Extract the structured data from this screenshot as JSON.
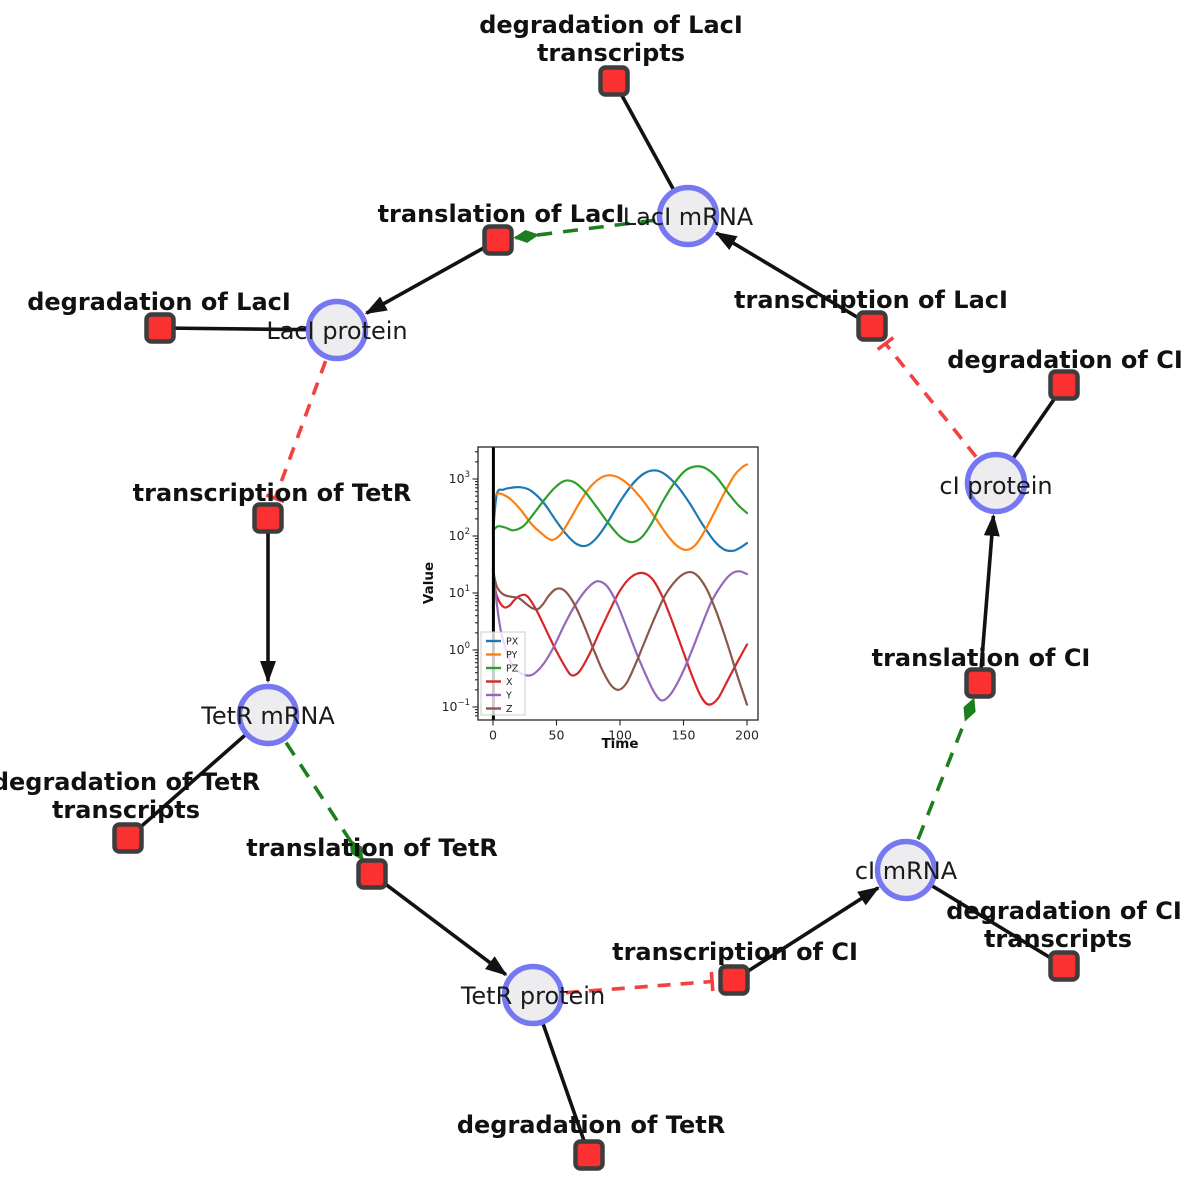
{
  "figure": {
    "description": "Repressilator gene regulatory network with embedded simulation time course"
  },
  "colors": {
    "species_fill": "#ededf0",
    "species_border": "#7678f2",
    "reaction_fill": "#fb3131",
    "reaction_border": "#3d3d3d",
    "production_edge": "#121212",
    "modifier_edge": "#1e7d1e",
    "inhibition_edge": "#f34040"
  },
  "network": {
    "species": [
      {
        "id": "laci-mrna",
        "label": "LacI mRNA"
      },
      {
        "id": "laci-protein",
        "label": "LacI protein"
      },
      {
        "id": "ci-protein",
        "label": "cI protein"
      },
      {
        "id": "tetr-mrna",
        "label": "TetR mRNA"
      },
      {
        "id": "tetr-protein",
        "label": "TetR protein"
      },
      {
        "id": "ci-mrna",
        "label": "cI mRNA"
      }
    ],
    "reactions": [
      {
        "id": "degradation-of-laci-transcripts",
        "label_lines": [
          "degradation of LacI",
          "transcripts"
        ]
      },
      {
        "id": "translation-of-laci",
        "label_lines": [
          "translation of LacI"
        ]
      },
      {
        "id": "degradation-of-laci",
        "label_lines": [
          "degradation of LacI"
        ]
      },
      {
        "id": "transcription-of-laci",
        "label_lines": [
          "transcription of LacI"
        ]
      },
      {
        "id": "degradation-of-ci",
        "label_lines": [
          "degradation of CI"
        ]
      },
      {
        "id": "transcription-of-tetr",
        "label_lines": [
          "transcription of TetR"
        ]
      },
      {
        "id": "degradation-of-tetr-transcripts",
        "label_lines": [
          "degradation of TetR",
          "transcripts"
        ]
      },
      {
        "id": "translation-of-tetr",
        "label_lines": [
          "translation of TetR"
        ]
      },
      {
        "id": "degradation-of-tetr",
        "label_lines": [
          "degradation of TetR"
        ]
      },
      {
        "id": "transcription-of-ci",
        "label_lines": [
          "transcription of CI"
        ]
      },
      {
        "id": "degradation-of-ci-transcripts",
        "label_lines": [
          "degradation of CI",
          "transcripts"
        ]
      },
      {
        "id": "translation-of-ci",
        "label_lines": [
          "translation of CI"
        ]
      }
    ]
  },
  "chart_data": {
    "type": "line",
    "title": "",
    "xlabel": "Time",
    "ylabel": "Value",
    "xlim": [
      -8,
      209
    ],
    "x_ticks": [
      0,
      50,
      100,
      150,
      200
    ],
    "yscale": "log",
    "ylim": [
      0.06,
      3500
    ],
    "y_tick_exponents": [
      3,
      2,
      1,
      0,
      -1
    ],
    "grid": false,
    "legend_position": "lower left",
    "event_line_x": 0,
    "series": [
      {
        "name": "PX",
        "color": "#1f77b4",
        "points": [
          [
            0,
            110
          ],
          [
            3,
            540
          ],
          [
            8,
            650
          ],
          [
            14,
            700
          ],
          [
            22,
            715
          ],
          [
            30,
            620
          ],
          [
            40,
            380
          ],
          [
            50,
            180
          ],
          [
            58,
            105
          ],
          [
            66,
            72
          ],
          [
            74,
            68
          ],
          [
            82,
            95
          ],
          [
            90,
            170
          ],
          [
            100,
            400
          ],
          [
            110,
            820
          ],
          [
            119,
            1250
          ],
          [
            127,
            1420
          ],
          [
            135,
            1230
          ],
          [
            145,
            760
          ],
          [
            155,
            370
          ],
          [
            165,
            160
          ],
          [
            174,
            83
          ],
          [
            182,
            58
          ],
          [
            189,
            55
          ],
          [
            195,
            63
          ],
          [
            200,
            75
          ]
        ]
      },
      {
        "name": "PY",
        "color": "#ff7f0e",
        "points": [
          [
            0,
            480
          ],
          [
            4,
            555
          ],
          [
            9,
            520
          ],
          [
            15,
            420
          ],
          [
            22,
            285
          ],
          [
            30,
            165
          ],
          [
            38,
            112
          ],
          [
            46,
            85
          ],
          [
            53,
            105
          ],
          [
            60,
            185
          ],
          [
            68,
            380
          ],
          [
            76,
            700
          ],
          [
            84,
            1020
          ],
          [
            91,
            1160
          ],
          [
            99,
            1060
          ],
          [
            108,
            750
          ],
          [
            118,
            420
          ],
          [
            128,
            205
          ],
          [
            137,
            105
          ],
          [
            145,
            67
          ],
          [
            152,
            57
          ],
          [
            159,
            68
          ],
          [
            166,
            115
          ],
          [
            174,
            250
          ],
          [
            182,
            560
          ],
          [
            190,
            1150
          ],
          [
            196,
            1600
          ],
          [
            200,
            1800
          ]
        ]
      },
      {
        "name": "PZ",
        "color": "#2ca02c",
        "points": [
          [
            0,
            125
          ],
          [
            4,
            148
          ],
          [
            10,
            140
          ],
          [
            16,
            126
          ],
          [
            24,
            150
          ],
          [
            32,
            245
          ],
          [
            40,
            420
          ],
          [
            48,
            680
          ],
          [
            56,
            920
          ],
          [
            63,
            900
          ],
          [
            71,
            650
          ],
          [
            80,
            360
          ],
          [
            90,
            178
          ],
          [
            100,
            98
          ],
          [
            109,
            78
          ],
          [
            117,
            95
          ],
          [
            125,
            170
          ],
          [
            133,
            380
          ],
          [
            142,
            800
          ],
          [
            151,
            1380
          ],
          [
            159,
            1660
          ],
          [
            167,
            1560
          ],
          [
            176,
            1080
          ],
          [
            186,
            540
          ],
          [
            193,
            350
          ],
          [
            200,
            252
          ]
        ]
      },
      {
        "name": "X",
        "color": "#d62728",
        "points": [
          [
            0,
            26
          ],
          [
            2,
            11
          ],
          [
            5,
            7
          ],
          [
            9,
            5.6
          ],
          [
            13,
            6
          ],
          [
            17,
            7.6
          ],
          [
            21,
            8.9
          ],
          [
            25,
            9.3
          ],
          [
            29,
            7.8
          ],
          [
            35,
            4.6
          ],
          [
            42,
            2.2
          ],
          [
            50,
            0.95
          ],
          [
            57,
            0.5
          ],
          [
            62,
            0.36
          ],
          [
            68,
            0.42
          ],
          [
            76,
            0.85
          ],
          [
            84,
            2.1
          ],
          [
            92,
            5
          ],
          [
            100,
            11
          ],
          [
            108,
            18.5
          ],
          [
            117,
            22.5
          ],
          [
            125,
            18
          ],
          [
            133,
            9
          ],
          [
            141,
            3.2
          ],
          [
            149,
            1.05
          ],
          [
            157,
            0.34
          ],
          [
            164,
            0.15
          ],
          [
            170,
            0.11
          ],
          [
            177,
            0.14
          ],
          [
            185,
            0.3
          ],
          [
            193,
            0.65
          ],
          [
            200,
            1.25
          ]
        ]
      },
      {
        "name": "Y",
        "color": "#9467bd",
        "points": [
          [
            0,
            26
          ],
          [
            3,
            6.5
          ],
          [
            6,
            2.3
          ],
          [
            10,
            1.05
          ],
          [
            15,
            0.55
          ],
          [
            20,
            0.42
          ],
          [
            26,
            0.36
          ],
          [
            32,
            0.38
          ],
          [
            40,
            0.58
          ],
          [
            48,
            1.15
          ],
          [
            56,
            2.7
          ],
          [
            64,
            5.8
          ],
          [
            72,
            10.5
          ],
          [
            79,
            15
          ],
          [
            84,
            16
          ],
          [
            90,
            13
          ],
          [
            97,
            7
          ],
          [
            104,
            2.9
          ],
          [
            112,
            1
          ],
          [
            120,
            0.38
          ],
          [
            127,
            0.18
          ],
          [
            133,
            0.13
          ],
          [
            140,
            0.17
          ],
          [
            148,
            0.35
          ],
          [
            156,
            0.9
          ],
          [
            164,
            2.6
          ],
          [
            172,
            7
          ],
          [
            181,
            15
          ],
          [
            188,
            22
          ],
          [
            194,
            24
          ],
          [
            200,
            21.5
          ]
        ]
      },
      {
        "name": "Z",
        "color": "#8c564b",
        "points": [
          [
            0,
            26
          ],
          [
            3,
            13
          ],
          [
            8,
            9.5
          ],
          [
            14,
            8.6
          ],
          [
            20,
            8.2
          ],
          [
            26,
            6.5
          ],
          [
            31,
            5.4
          ],
          [
            35,
            5.2
          ],
          [
            39,
            6.2
          ],
          [
            44,
            9
          ],
          [
            49,
            11.5
          ],
          [
            54,
            11.8
          ],
          [
            59,
            9.5
          ],
          [
            65,
            5.8
          ],
          [
            72,
            2.6
          ],
          [
            79,
            1.05
          ],
          [
            86,
            0.45
          ],
          [
            93,
            0.24
          ],
          [
            99,
            0.2
          ],
          [
            105,
            0.26
          ],
          [
            112,
            0.55
          ],
          [
            120,
            1.5
          ],
          [
            128,
            4
          ],
          [
            136,
            9.5
          ],
          [
            145,
            17.5
          ],
          [
            153,
            23
          ],
          [
            160,
            21
          ],
          [
            168,
            12
          ],
          [
            176,
            4.6
          ],
          [
            184,
            1.4
          ],
          [
            192,
            0.38
          ],
          [
            200,
            0.11
          ]
        ]
      }
    ]
  }
}
